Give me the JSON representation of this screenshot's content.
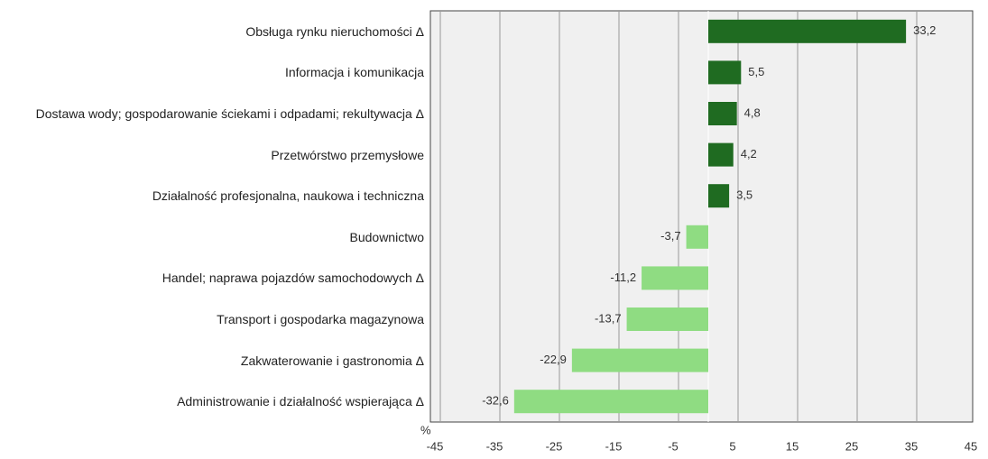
{
  "chart_data": {
    "type": "barh",
    "categories": [
      "Obsługa rynku nieruchomości Δ",
      "Informacja i komunikacja",
      "Dostawa wody; gospodarowanie ściekami i odpadami; rekultywacja Δ",
      "Przetwórstwo przemysłowe",
      "Działalność profesjonalna, naukowa i techniczna",
      "Budownictwo",
      "Handel; naprawa pojazdów samochodowych Δ",
      "Transport i gospodarka magazynowa",
      "Zakwaterowanie i gastronomia Δ",
      "Administrowanie i działalność wspierająca Δ"
    ],
    "values": [
      33.2,
      5.5,
      4.8,
      4.2,
      3.5,
      -3.7,
      -11.2,
      -13.7,
      -22.9,
      -32.6
    ],
    "value_labels": [
      "33,2",
      "5,5",
      "4,8",
      "4,2",
      "3,5",
      "-3,7",
      "-11,2",
      "-13,7",
      "-22,9",
      "-32,6"
    ],
    "color_positive": "#1f6b21",
    "color_negative": "#8fdc82",
    "xlabel": "%",
    "xlim": [
      -45,
      45
    ],
    "xticks": [
      -45,
      -35,
      -25,
      -15,
      -5,
      5,
      15,
      25,
      35,
      45
    ],
    "grid": true
  }
}
